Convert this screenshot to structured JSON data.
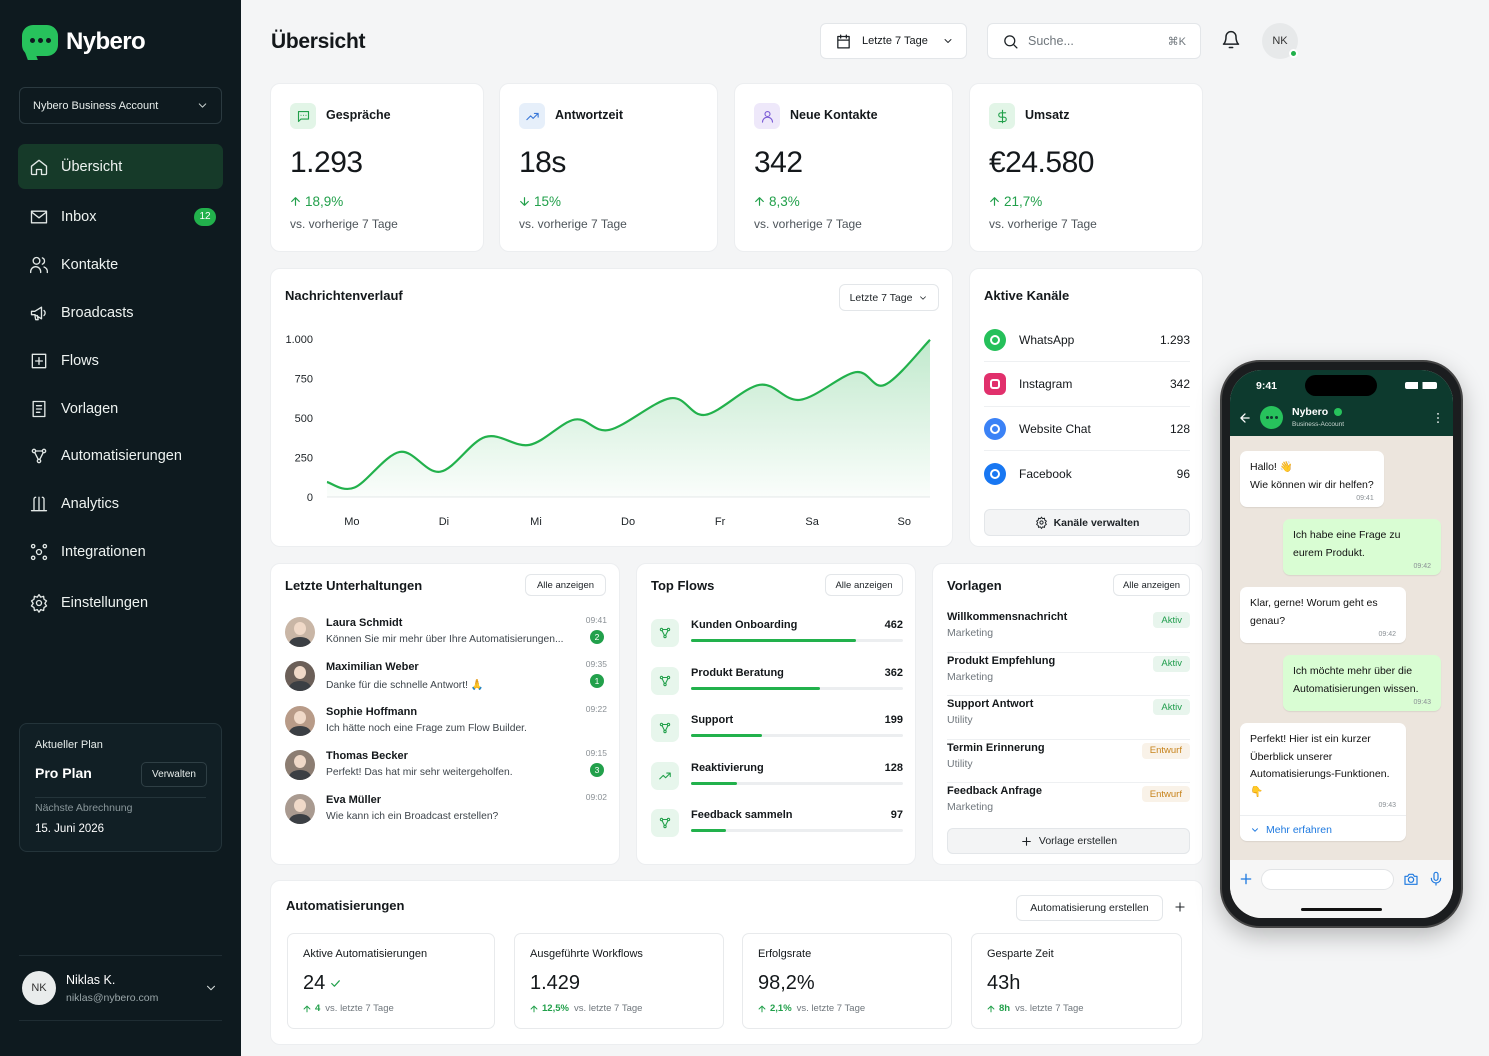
{
  "sidebar": {
    "brand": "Nybero",
    "account": "Nybero Business Account",
    "nav": [
      {
        "label": "Übersicht",
        "icon": "home",
        "active": true
      },
      {
        "label": "Inbox",
        "icon": "mail",
        "badge": "12"
      },
      {
        "label": "Kontakte",
        "icon": "users"
      },
      {
        "label": "Broadcasts",
        "icon": "mega"
      },
      {
        "label": "Flows",
        "icon": "flow"
      },
      {
        "label": "Vorlagen",
        "icon": "doc"
      },
      {
        "label": "Automatisierungen",
        "icon": "auto"
      },
      {
        "label": "Analytics",
        "icon": "analytics"
      },
      {
        "label": "Integrationen",
        "icon": "integr"
      },
      {
        "label": "Einstellungen",
        "icon": "gear"
      }
    ],
    "plan": {
      "heading": "Aktueller Plan",
      "name": "Pro Plan",
      "button": "Verwalten",
      "billing_label": "Nächste Abrechnung",
      "billing_date": "15. Juni 2026"
    },
    "user": {
      "initials": "NK",
      "name": "Niklas K.",
      "email": "niklas@nybero.com"
    }
  },
  "header": {
    "title": "Übersicht",
    "range": "Letzte 7 Tage",
    "search": "Suche...",
    "shortcut": "⌘K",
    "avatar": "NK"
  },
  "stats": [
    {
      "label": "Gespräche",
      "value": "1.293",
      "change": "18,9%",
      "direction": "up",
      "note": "vs. vorherige 7 Tage"
    },
    {
      "label": "Antwortzeit",
      "value": "18s",
      "change": "15%",
      "direction": "down",
      "note": "vs. vorherige 7 Tage"
    },
    {
      "label": "Neue Kontakte",
      "value": "342",
      "change": "8,3%",
      "direction": "up",
      "note": "vs. vorherige 7 Tage"
    },
    {
      "label": "Umsatz",
      "value": "€24.580",
      "change": "21,7%",
      "direction": "up",
      "note": "vs. vorherige 7 Tage"
    }
  ],
  "chart_data": {
    "type": "line",
    "title": "Nachrichtenverlauf",
    "range": "Letzte 7 Tage",
    "x": [
      -0.27,
      0.03,
      0.52,
      0.96,
      1.45,
      1.93,
      2.42,
      2.8,
      3.46,
      3.84,
      4.43,
      4.87,
      5.47,
      5.79,
      6.28
    ],
    "values": [
      95,
      60,
      285,
      160,
      380,
      330,
      490,
      425,
      625,
      520,
      710,
      615,
      790,
      710,
      995
    ],
    "color": "#22b14c",
    "xlim": [
      -0.27,
      6.28
    ],
    "xticks": [
      {
        "value": 0,
        "label": "Mo"
      },
      {
        "value": 1,
        "label": "Di"
      },
      {
        "value": 2,
        "label": "Mi"
      },
      {
        "value": 3,
        "label": "Do"
      },
      {
        "value": 4,
        "label": "Fr"
      },
      {
        "value": 5,
        "label": "Sa"
      },
      {
        "value": 6,
        "label": "So"
      }
    ],
    "ylim": [
      0,
      1000
    ],
    "yticks": [
      0,
      250,
      500,
      750,
      {
        "value": 1000,
        "label": "1.000"
      }
    ],
    "grid": false,
    "area": true
  },
  "channels": {
    "title": "Aktive Kanäle",
    "items": [
      {
        "name": "WhatsApp",
        "count": "1.293",
        "color": "#25c05a"
      },
      {
        "name": "Instagram",
        "count": "342",
        "color": "#e1306c"
      },
      {
        "name": "Website Chat",
        "count": "128",
        "color": "#3b82f6"
      },
      {
        "name": "Facebook",
        "count": "96",
        "color": "#1877f2"
      }
    ],
    "button": "Kanäle verwalten"
  },
  "conversations": {
    "title": "Letzte Unterhaltungen",
    "button": "Alle anzeigen",
    "items": [
      {
        "name": "Laura Schmidt",
        "message": "Können Sie mir mehr über Ihre Automatisierungen...",
        "time": "09:41",
        "unread": "2"
      },
      {
        "name": "Maximilian Weber",
        "message": "Danke für die schnelle Antwort! 🙏",
        "time": "09:35",
        "unread": "1"
      },
      {
        "name": "Sophie Hoffmann",
        "message": "Ich hätte noch eine Frage zum Flow Builder.",
        "time": "09:22"
      },
      {
        "name": "Thomas Becker",
        "message": "Perfekt! Das hat mir sehr weitergeholfen.",
        "time": "09:15",
        "unread": "3"
      },
      {
        "name": "Eva Müller",
        "message": "Wie kann ich ein Broadcast erstellen?",
        "time": "09:02"
      }
    ]
  },
  "flows": {
    "title": "Top Flows",
    "button": "Alle anzeigen",
    "items": [
      {
        "name": "Kunden Onboarding",
        "count": 462
      },
      {
        "name": "Produkt Beratung",
        "count": 362
      },
      {
        "name": "Support",
        "count": 199
      },
      {
        "name": "Reaktivierung",
        "count": 128
      },
      {
        "name": "Feedback sammeln",
        "count": 97
      }
    ]
  },
  "templates": {
    "title": "Vorlagen",
    "button": "Alle anzeigen",
    "items": [
      {
        "name": "Willkommensnachricht",
        "category": "Marketing",
        "status": "Aktiv",
        "color": "#1f9d4c"
      },
      {
        "name": "Produkt Empfehlung",
        "category": "Marketing",
        "status": "Aktiv",
        "color": "#1f9d4c"
      },
      {
        "name": "Support Antwort",
        "category": "Utility",
        "status": "Aktiv",
        "color": "#1f9d4c"
      },
      {
        "name": "Termin Erinnerung",
        "category": "Utility",
        "status": "Entwurf",
        "color": "#c7831b"
      },
      {
        "name": "Feedback Anfrage",
        "category": "Marketing",
        "status": "Entwurf",
        "color": "#c7831b"
      }
    ],
    "create": "Vorlage erstellen"
  },
  "automations": {
    "title": "Automatisierungen",
    "button": "Automatisierung erstellen",
    "kpis": [
      {
        "label": "Aktive Automatisierungen",
        "value": "24",
        "change": "4",
        "note": "vs. letzte 7 Tage",
        "check": true
      },
      {
        "label": "Ausgeführte Workflows",
        "value": "1.429",
        "change": "12,5%",
        "note": "vs. letzte 7 Tage"
      },
      {
        "label": "Erfolgsrate",
        "value": "98,2%",
        "change": "2,1%",
        "note": "vs. letzte 7 Tage"
      },
      {
        "label": "Gesparte Zeit",
        "value": "43h",
        "change": "8h",
        "note": "vs. letzte 7 Tage"
      }
    ]
  },
  "phone": {
    "time": "9:41",
    "contact": "Nybero",
    "subtitle": "Business-Account",
    "messages": [
      {
        "from": "bot",
        "text": "Hallo! 👋\nWie können wir dir helfen?",
        "time": "09:41"
      },
      {
        "from": "user",
        "text": "Ich habe eine Frage zu eurem Produkt.",
        "time": "09:42"
      },
      {
        "from": "bot",
        "text": "Klar, gerne! Worum geht es genau?",
        "time": "09:42"
      },
      {
        "from": "user",
        "text": "Ich möchte mehr über die Automatisierungen wissen.",
        "time": "09:43"
      },
      {
        "from": "bot",
        "text": "Perfekt! Hier ist ein kurzer Überblick unserer Automatisierungs-Funktionen. 👇",
        "time": "09:43",
        "link": "Mehr erfahren"
      }
    ]
  }
}
